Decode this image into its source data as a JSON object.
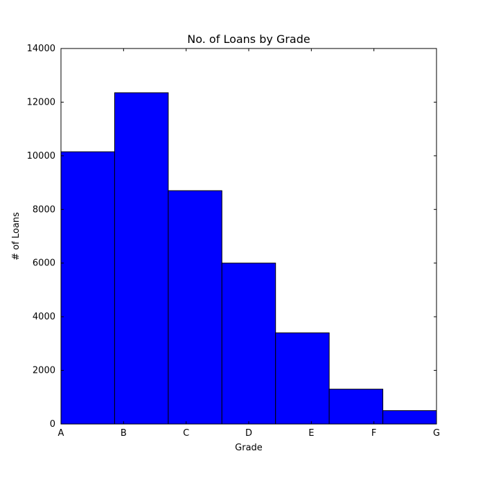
{
  "chart_data": {
    "type": "bar",
    "title": "No. of Loans by Grade",
    "xlabel": "Grade",
    "ylabel": "# of Loans",
    "ylim": [
      0,
      14000
    ],
    "y_ticks": [
      0,
      2000,
      4000,
      6000,
      8000,
      10000,
      12000,
      14000
    ],
    "x_tick_labels": [
      "A",
      "B",
      "C",
      "D",
      "E",
      "F",
      "G"
    ],
    "bins": [
      {
        "value": 10150
      },
      {
        "value": 12350
      },
      {
        "value": 8700
      },
      {
        "value": 6000
      },
      {
        "value": 3400
      },
      {
        "value": 1300
      },
      {
        "value": 500
      }
    ],
    "bar_color": "#0000ff",
    "edge_color": "#000000",
    "grid": false
  }
}
